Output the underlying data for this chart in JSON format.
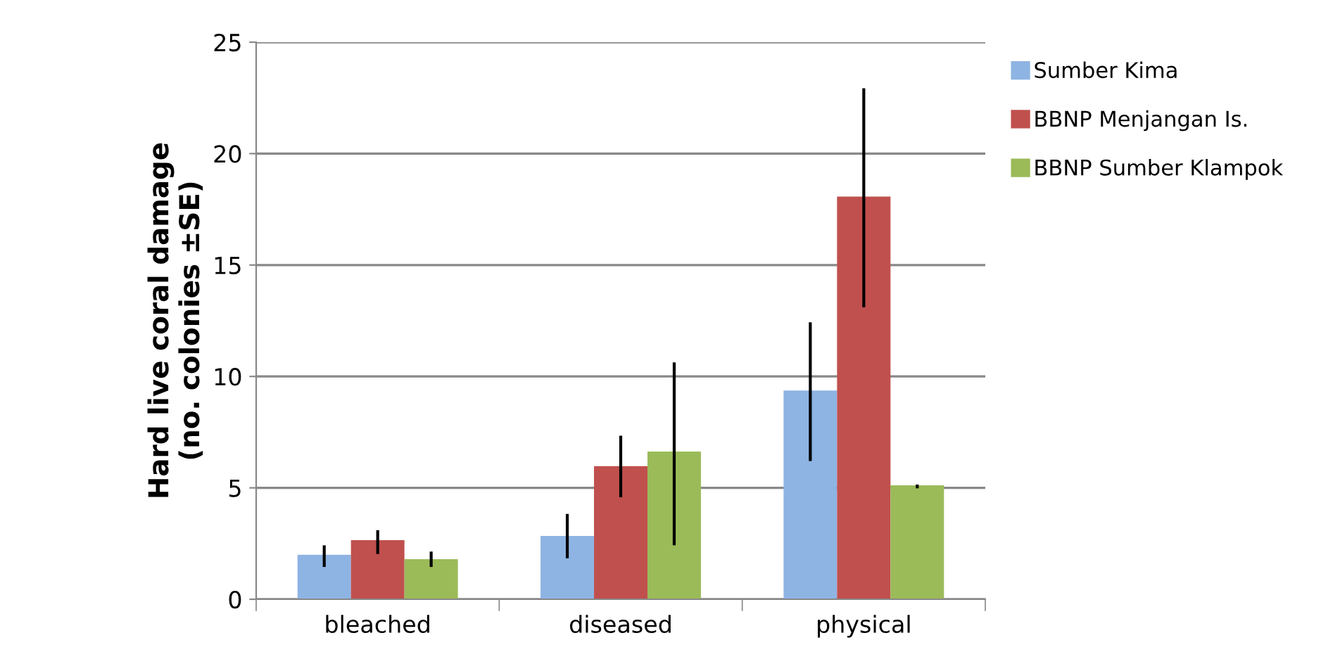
{
  "chart_data": {
    "type": "bar",
    "ylabel": "Hard live coral damage\n(no. colonies ±SE)",
    "categories": [
      "bleached",
      "diseased",
      "physical"
    ],
    "series": [
      {
        "name": "Sumber Kima",
        "color": "#8eb4e3",
        "values": [
          2.0,
          2.84,
          9.37
        ],
        "errors": [
          [
            1.45,
            2.42
          ],
          [
            1.84,
            3.83
          ],
          [
            6.2,
            12.43
          ]
        ]
      },
      {
        "name": "BBNP Menjangan Is.",
        "color": "#c0504d",
        "values": [
          2.65,
          5.97,
          18.07
        ],
        "errors": [
          [
            2.03,
            3.1
          ],
          [
            4.58,
            7.34
          ],
          [
            13.1,
            22.93
          ]
        ]
      },
      {
        "name": "BBNP Sumber Klampok",
        "color": "#9bbb59",
        "values": [
          1.8,
          6.63,
          5.11
        ],
        "errors": [
          [
            1.45,
            2.14
          ],
          [
            2.42,
            10.63
          ],
          [
            4.98,
            5.15
          ]
        ]
      }
    ],
    "ylim": [
      0,
      25
    ],
    "yticks": [
      0,
      5,
      10,
      15,
      20,
      25
    ],
    "grid": "y",
    "legend": "top right"
  }
}
